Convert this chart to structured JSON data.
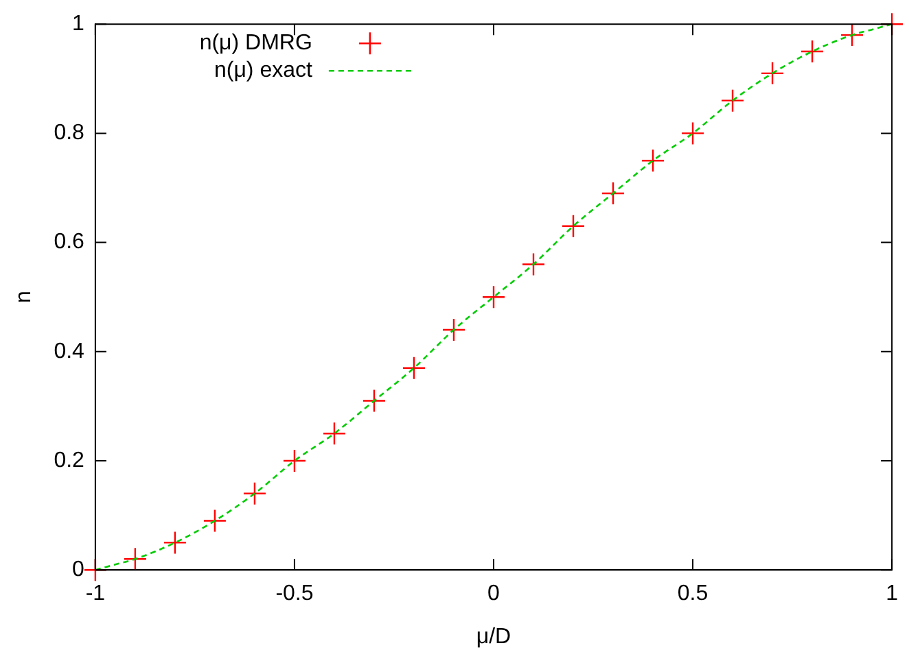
{
  "chart_data": {
    "type": "scatter",
    "xlabel": "μ/D",
    "ylabel": "n",
    "xlim": [
      -1,
      1
    ],
    "ylim": [
      0,
      1
    ],
    "xticks": [
      -1,
      -0.5,
      0,
      0.5,
      1
    ],
    "yticks": [
      0,
      0.2,
      0.4,
      0.6,
      0.8,
      1
    ],
    "grid": false,
    "legend": "top left",
    "series": [
      {
        "name": "n(μ) DMRG",
        "marker": "cross",
        "color": "#ff0000",
        "x": [
          -1,
          -0.9,
          -0.8,
          -0.7,
          -0.6,
          -0.5,
          -0.4,
          -0.3,
          -0.2,
          -0.1,
          0,
          0.1,
          0.2,
          0.3,
          0.4,
          0.5,
          0.6,
          0.7,
          0.8,
          0.9,
          1
        ],
        "values": [
          0,
          0.02,
          0.05,
          0.09,
          0.14,
          0.2,
          0.25,
          0.31,
          0.37,
          0.44,
          0.5,
          0.56,
          0.63,
          0.69,
          0.75,
          0.8,
          0.86,
          0.91,
          0.95,
          0.98,
          1
        ]
      },
      {
        "name": "n(μ) exact",
        "type": "line",
        "line_style": "dashed",
        "marker": "none",
        "color": "#00cc00",
        "x": [
          -1,
          -0.95,
          -0.9,
          -0.8,
          -0.7,
          -0.6,
          -0.5,
          -0.4,
          -0.3,
          -0.2,
          -0.1,
          0,
          0.1,
          0.2,
          0.3,
          0.4,
          0.5,
          0.6,
          0.7,
          0.8,
          0.9,
          0.95,
          1
        ],
        "values": [
          0,
          0.01,
          0.02,
          0.05,
          0.09,
          0.14,
          0.2,
          0.25,
          0.31,
          0.37,
          0.44,
          0.5,
          0.56,
          0.63,
          0.69,
          0.75,
          0.8,
          0.86,
          0.91,
          0.95,
          0.98,
          0.99,
          1
        ]
      }
    ]
  }
}
